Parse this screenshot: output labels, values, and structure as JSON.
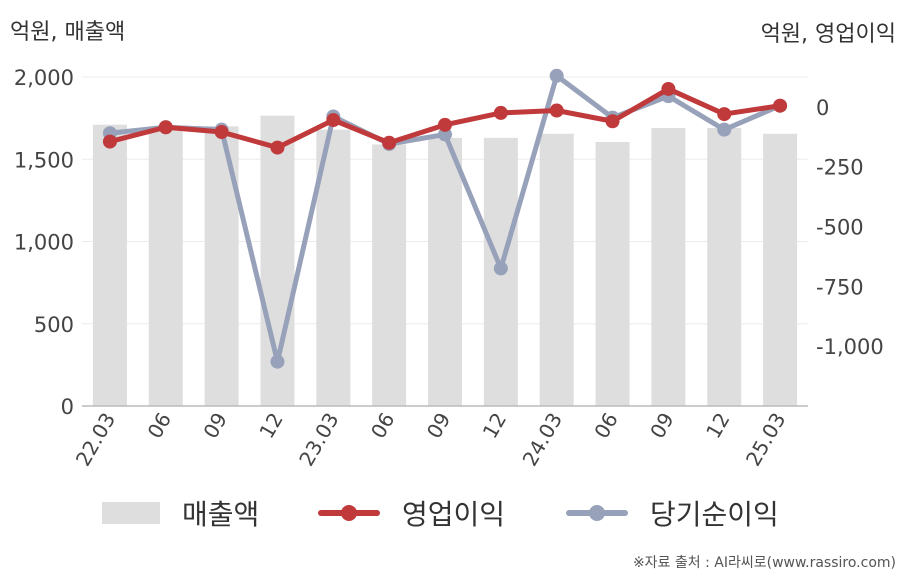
{
  "chart_data": {
    "type": "bar+line",
    "left_axis_unit": "억원, 매출액",
    "right_axis_unit": "억원, 영업이익",
    "categories": [
      "22.03",
      "06",
      "09",
      "12",
      "23.03",
      "06",
      "09",
      "12",
      "24.03",
      "06",
      "09",
      "12",
      "25.03"
    ],
    "left_ticks": [
      "0",
      "500",
      "1,000",
      "1,500",
      "2,000"
    ],
    "right_ticks": [
      "0",
      "-250",
      "-500",
      "-750",
      "-1,000"
    ],
    "left_ylim": [
      0,
      2000
    ],
    "right_ylim": [
      -1250,
      125
    ],
    "series": [
      {
        "name": "매출액",
        "type": "bar",
        "axis": "left",
        "color": "#dedede",
        "values": [
          1710,
          1690,
          1700,
          1765,
          1680,
          1590,
          1630,
          1630,
          1655,
          1605,
          1690,
          1690,
          1655
        ]
      },
      {
        "name": "영업이익",
        "type": "line",
        "axis": "right",
        "color": "#c0393b",
        "values": [
          -145,
          -85,
          -105,
          -170,
          -55,
          -150,
          -75,
          -25,
          -15,
          -60,
          75,
          -30,
          5
        ]
      },
      {
        "name": "당기순이익",
        "type": "line",
        "axis": "right",
        "color": "#97a1b9",
        "values": [
          -110,
          -85,
          -95,
          -1065,
          -40,
          -155,
          -115,
          -675,
          130,
          -45,
          45,
          -95,
          5
        ]
      }
    ],
    "grid": true,
    "legend_position": "bottom"
  },
  "legend": {
    "sales": "매출액",
    "operating_profit": "영업이익",
    "net_income": "당기순이익"
  },
  "source": "※자료 출처 : AI라씨로(www.rassiro.com)"
}
